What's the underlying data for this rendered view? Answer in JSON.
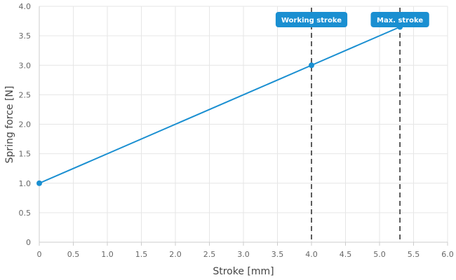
{
  "chart_data": {
    "type": "line",
    "xlabel": "Stroke [mm]",
    "ylabel": "Spring force [N]",
    "xlim": [
      0,
      6
    ],
    "ylim": [
      0,
      4
    ],
    "x_ticks": [
      "0",
      "0.5",
      "1.0",
      "1.5",
      "2.0",
      "2.5",
      "3.0",
      "3.5",
      "4.0",
      "4.5",
      "5.0",
      "5.5",
      "6.0"
    ],
    "y_ticks": [
      "0",
      "0.5",
      "1.0",
      "1.5",
      "2.0",
      "2.5",
      "3.0",
      "3.5",
      "4.0"
    ],
    "grid": true,
    "series": [
      {
        "color": "#1a8fd1",
        "points": [
          {
            "x": 0,
            "y": 1.0
          },
          {
            "x": 4.0,
            "y": 3.0
          },
          {
            "x": 5.3,
            "y": 3.65
          }
        ]
      }
    ],
    "markers": [
      {
        "label": "Working stroke",
        "x": 4.0
      },
      {
        "label": "Max. stroke",
        "x": 5.3
      }
    ],
    "colors": {
      "line": "#1a8fd1",
      "marker_label_bg": "#1a8fd1",
      "grid": "#e6e6e6",
      "axis": "#cccccc",
      "marker_line": "#333333"
    }
  }
}
